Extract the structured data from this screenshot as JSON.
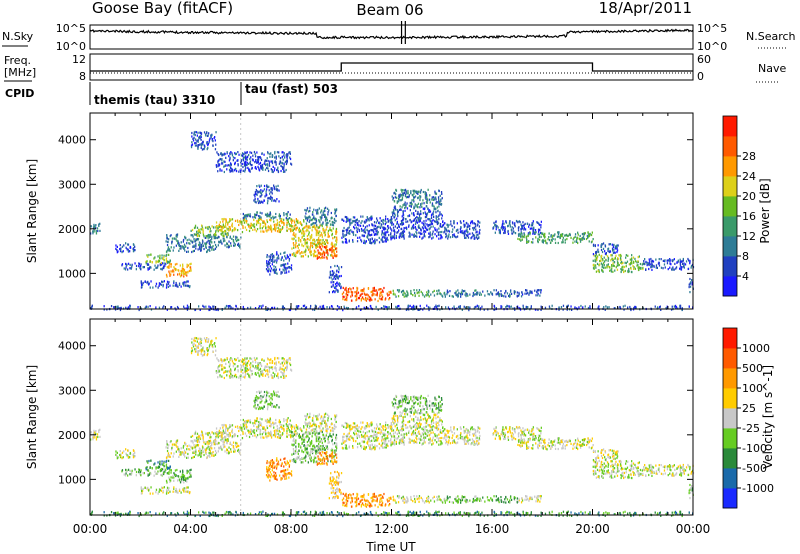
{
  "header": {
    "station": "Goose Bay (fitACF)",
    "beam": "Beam 06",
    "date": "18/Apr/2011"
  },
  "nsky_panel": {
    "left_label": "N.Sky",
    "right_label": "N.Search",
    "left_ticks": [
      "10^5",
      "10^0"
    ],
    "right_ticks": [
      "10^5",
      "10^0"
    ]
  },
  "freq_panel": {
    "left_label_1": "Freq.",
    "left_label_2": "[MHz]",
    "left_ticks": [
      "12",
      "8"
    ],
    "right_ticks": [
      "60",
      "0"
    ],
    "right_label": "Nave",
    "cpid_label": "CPID"
  },
  "cpid_modes": [
    {
      "label": "themis (tau) 3310",
      "start_hour": 0
    },
    {
      "label": "tau (fast) 503",
      "start_hour": 6
    }
  ],
  "chart_data": [
    {
      "type": "heatmap",
      "name": "power",
      "ylabel": "Slant Range [km]",
      "ylim": [
        200,
        4600
      ],
      "yticks": [
        1000,
        2000,
        3000,
        4000
      ],
      "xlim": [
        0,
        24
      ],
      "colorbar": {
        "label": "Power [dB]",
        "ticks": [
          "4",
          "8",
          "12",
          "16",
          "20",
          "24",
          "28"
        ],
        "colors": [
          "#1a1aff",
          "#2040c0",
          "#2e7c96",
          "#3a9a6a",
          "#66bb22",
          "#ddd01a",
          "#ff9900",
          "#ff5a00",
          "#ff1a00"
        ]
      },
      "regions": [
        {
          "t": [
            0.0,
            0.4
          ],
          "r": [
            1900,
            2150
          ],
          "level": 2
        },
        {
          "t": [
            1.0,
            1.8
          ],
          "r": [
            1500,
            1700
          ],
          "level": 1
        },
        {
          "t": [
            1.2,
            3.0
          ],
          "r": [
            1100,
            1250
          ],
          "level": 1
        },
        {
          "t": [
            2.2,
            3.2
          ],
          "r": [
            1250,
            1450
          ],
          "level": 4
        },
        {
          "t": [
            3.0,
            4.0
          ],
          "r": [
            950,
            1250
          ],
          "level": 6
        },
        {
          "t": [
            2.0,
            4.0
          ],
          "r": [
            700,
            850
          ],
          "level": 1
        },
        {
          "t": [
            3.0,
            5.0
          ],
          "r": [
            1500,
            1900
          ],
          "level": 2
        },
        {
          "t": [
            4.0,
            5.5
          ],
          "r": [
            1850,
            2100
          ],
          "level": 4
        },
        {
          "t": [
            5.0,
            8.5
          ],
          "r": [
            1950,
            2250
          ],
          "level": 5
        },
        {
          "t": [
            6.0,
            8.0
          ],
          "r": [
            2250,
            2400
          ],
          "level": 2
        },
        {
          "t": [
            5.0,
            6.0
          ],
          "r": [
            1600,
            1850
          ],
          "level": 2
        },
        {
          "t": [
            4.0,
            5.0
          ],
          "r": [
            3800,
            4200
          ],
          "level": 1
        },
        {
          "t": [
            5.0,
            8.0
          ],
          "r": [
            3300,
            3750
          ],
          "level": 1
        },
        {
          "t": [
            6.5,
            7.5
          ],
          "r": [
            2600,
            3000
          ],
          "level": 1
        },
        {
          "t": [
            8.0,
            9.8
          ],
          "r": [
            1400,
            2100
          ],
          "level": 5
        },
        {
          "t": [
            9.0,
            9.8
          ],
          "r": [
            1350,
            1650
          ],
          "level": 7
        },
        {
          "t": [
            8.5,
            9.8
          ],
          "r": [
            2100,
            2500
          ],
          "level": 2
        },
        {
          "t": [
            7.0,
            8.0
          ],
          "r": [
            1000,
            1500
          ],
          "level": 1
        },
        {
          "t": [
            9.5,
            10.0
          ],
          "r": [
            600,
            1200
          ],
          "level": 1
        },
        {
          "t": [
            10.0,
            12.0
          ],
          "r": [
            400,
            700
          ],
          "level": 7
        },
        {
          "t": [
            12.0,
            14.0
          ],
          "r": [
            500,
            650
          ],
          "level": 3
        },
        {
          "t": [
            14.0,
            17.0
          ],
          "r": [
            500,
            650
          ],
          "level": 2
        },
        {
          "t": [
            17.0,
            18.0
          ],
          "r": [
            500,
            650
          ],
          "level": 1
        },
        {
          "t": [
            10.0,
            12.0
          ],
          "r": [
            1700,
            2300
          ],
          "level": 1
        },
        {
          "t": [
            12.0,
            14.0
          ],
          "r": [
            1800,
            2500
          ],
          "level": 1
        },
        {
          "t": [
            12.0,
            14.0
          ],
          "r": [
            2500,
            2900
          ],
          "level": 2
        },
        {
          "t": [
            14.0,
            15.5
          ],
          "r": [
            1800,
            2200
          ],
          "level": 1
        },
        {
          "t": [
            16.0,
            18.0
          ],
          "r": [
            1900,
            2200
          ],
          "level": 1
        },
        {
          "t": [
            17.0,
            20.0
          ],
          "r": [
            1700,
            1950
          ],
          "level": 3
        },
        {
          "t": [
            20.0,
            22.0
          ],
          "r": [
            1050,
            1450
          ],
          "level": 4
        },
        {
          "t": [
            22.0,
            24.0
          ],
          "r": [
            1100,
            1350
          ],
          "level": 1
        },
        {
          "t": [
            20.0,
            21.0
          ],
          "r": [
            1450,
            1700
          ],
          "level": 1
        },
        {
          "t": [
            0.0,
            24.0
          ],
          "r": [
            200,
            300
          ],
          "level": 1
        },
        {
          "t": [
            23.8,
            24.0
          ],
          "r": [
            600,
            900
          ],
          "level": 1
        }
      ]
    },
    {
      "type": "heatmap",
      "name": "velocity",
      "xlabel": "Time UT",
      "ylabel": "Slant Range [km]",
      "ylim": [
        200,
        4600
      ],
      "yticks": [
        1000,
        2000,
        3000,
        4000
      ],
      "xlim": [
        0,
        24
      ],
      "xticks": [
        "00:00",
        "04:00",
        "08:00",
        "12:00",
        "16:00",
        "20:00",
        "00:00"
      ],
      "colorbar": {
        "label": "Velocity [m s^-1]",
        "ticks": [
          "1000",
          "500",
          "100",
          "25",
          "-25",
          "-100",
          "-500",
          "-1000"
        ],
        "colors": [
          "#1a2aff",
          "#1a6aaa",
          "#2a8a3a",
          "#66cc22",
          "#c8c8c8",
          "#ffcc00",
          "#ff9900",
          "#ff5a00",
          "#ff1a00"
        ]
      },
      "regions": [
        {
          "t": [
            0.0,
            0.4
          ],
          "r": [
            1900,
            2150
          ],
          "level": 4
        },
        {
          "t": [
            1.0,
            1.8
          ],
          "r": [
            1500,
            1700
          ],
          "level": 4
        },
        {
          "t": [
            1.2,
            3.0
          ],
          "r": [
            1100,
            1250
          ],
          "level": 3
        },
        {
          "t": [
            2.2,
            3.2
          ],
          "r": [
            1250,
            1450
          ],
          "level": 2
        },
        {
          "t": [
            3.0,
            4.0
          ],
          "r": [
            950,
            1250
          ],
          "level": 3
        },
        {
          "t": [
            2.0,
            4.0
          ],
          "r": [
            700,
            850
          ],
          "level": 4
        },
        {
          "t": [
            3.0,
            5.0
          ],
          "r": [
            1500,
            1900
          ],
          "level": 4
        },
        {
          "t": [
            4.0,
            5.5
          ],
          "r": [
            1850,
            2100
          ],
          "level": 4
        },
        {
          "t": [
            5.0,
            8.5
          ],
          "r": [
            1950,
            2250
          ],
          "level": 4
        },
        {
          "t": [
            6.0,
            8.0
          ],
          "r": [
            2250,
            2400
          ],
          "level": 4
        },
        {
          "t": [
            5.0,
            6.0
          ],
          "r": [
            1600,
            1850
          ],
          "level": 4
        },
        {
          "t": [
            4.0,
            5.0
          ],
          "r": [
            3800,
            4200
          ],
          "level": 4
        },
        {
          "t": [
            5.0,
            8.0
          ],
          "r": [
            3300,
            3750
          ],
          "level": 4
        },
        {
          "t": [
            6.5,
            7.5
          ],
          "r": [
            2600,
            3000
          ],
          "level": 3
        },
        {
          "t": [
            8.0,
            9.8
          ],
          "r": [
            1400,
            2100
          ],
          "level": 3
        },
        {
          "t": [
            9.0,
            9.8
          ],
          "r": [
            1350,
            1650
          ],
          "level": 6
        },
        {
          "t": [
            8.5,
            9.8
          ],
          "r": [
            2100,
            2500
          ],
          "level": 4
        },
        {
          "t": [
            7.0,
            8.0
          ],
          "r": [
            1000,
            1500
          ],
          "level": 6
        },
        {
          "t": [
            9.5,
            10.0
          ],
          "r": [
            600,
            1200
          ],
          "level": 5
        },
        {
          "t": [
            10.0,
            12.0
          ],
          "r": [
            400,
            700
          ],
          "level": 6
        },
        {
          "t": [
            12.0,
            14.0
          ],
          "r": [
            500,
            650
          ],
          "level": 4
        },
        {
          "t": [
            14.0,
            17.0
          ],
          "r": [
            500,
            650
          ],
          "level": 3
        },
        {
          "t": [
            17.0,
            18.0
          ],
          "r": [
            500,
            650
          ],
          "level": 4
        },
        {
          "t": [
            10.0,
            12.0
          ],
          "r": [
            1700,
            2300
          ],
          "level": 4
        },
        {
          "t": [
            12.0,
            14.0
          ],
          "r": [
            1800,
            2500
          ],
          "level": 4
        },
        {
          "t": [
            12.0,
            14.0
          ],
          "r": [
            2500,
            2900
          ],
          "level": 3
        },
        {
          "t": [
            14.0,
            15.5
          ],
          "r": [
            1800,
            2200
          ],
          "level": 4
        },
        {
          "t": [
            16.0,
            18.0
          ],
          "r": [
            1900,
            2200
          ],
          "level": 4
        },
        {
          "t": [
            17.0,
            20.0
          ],
          "r": [
            1700,
            1950
          ],
          "level": 4
        },
        {
          "t": [
            20.0,
            22.0
          ],
          "r": [
            1050,
            1450
          ],
          "level": 4
        },
        {
          "t": [
            22.0,
            24.0
          ],
          "r": [
            1100,
            1350
          ],
          "level": 4
        },
        {
          "t": [
            20.0,
            21.0
          ],
          "r": [
            1450,
            1700
          ],
          "level": 4
        },
        {
          "t": [
            0.0,
            24.0
          ],
          "r": [
            200,
            300
          ],
          "level": 2
        },
        {
          "t": [
            23.8,
            24.0
          ],
          "r": [
            600,
            900
          ],
          "level": 3
        }
      ]
    }
  ]
}
